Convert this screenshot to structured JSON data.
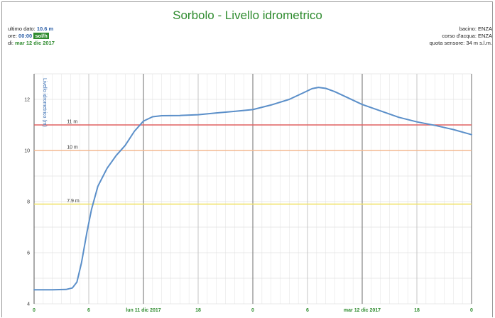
{
  "title": "Sorbolo - Livello idrometrico",
  "info_left": {
    "ultimo_label": "ultimo dato:",
    "ultimo_value": "10.6 m",
    "ore_label": "ore:",
    "ore_value": "00:00",
    "ore_tag": "sol/h",
    "di_label": "di:",
    "di_value": "mar 12 dic 2017"
  },
  "info_right": {
    "bacino": "bacino: ENZA",
    "corso": "corso d'acqua: ENZA",
    "quota": "quota sensore: 34 m s.l.m."
  },
  "colors": {
    "title": "#2e8b2e",
    "series": "#5b8fc9",
    "threshold_red": "#e06060",
    "threshold_orange": "#f3b890",
    "threshold_yellow": "#f0e26a"
  },
  "chart_data": {
    "type": "line",
    "ylabel": "Livello idrometrico (m)",
    "ylim": [
      4,
      13
    ],
    "xlim": [
      0,
      48
    ],
    "y_ticks": [
      "4",
      "6",
      "8",
      "10",
      "12"
    ],
    "x_ticks": [
      {
        "x": 0,
        "label": "0"
      },
      {
        "x": 6,
        "label": "6"
      },
      {
        "x": 12,
        "label": "lun 11 dic 2017"
      },
      {
        "x": 18,
        "label": "18"
      },
      {
        "x": 24,
        "label": "0"
      },
      {
        "x": 30,
        "label": "6"
      },
      {
        "x": 36,
        "label": "mar 12 dic 2017"
      },
      {
        "x": 42,
        "label": "18"
      },
      {
        "x": 48,
        "label": "0"
      }
    ],
    "grid": true,
    "thresholds": [
      {
        "value": 11,
        "label": "11 m",
        "color": "#e06060"
      },
      {
        "value": 10,
        "label": "10 m",
        "color": "#f3b890"
      },
      {
        "value": 7.9,
        "label": "7.9 m",
        "color": "#f0e26a"
      }
    ],
    "series": [
      {
        "values": [
          {
            "x": 0,
            "y": 4.55
          },
          {
            "x": 2,
            "y": 4.55
          },
          {
            "x": 3.5,
            "y": 4.56
          },
          {
            "x": 4.2,
            "y": 4.62
          },
          {
            "x": 4.7,
            "y": 4.85
          },
          {
            "x": 5.2,
            "y": 5.6
          },
          {
            "x": 5.8,
            "y": 6.8
          },
          {
            "x": 6.3,
            "y": 7.7
          },
          {
            "x": 7,
            "y": 8.6
          },
          {
            "x": 8,
            "y": 9.3
          },
          {
            "x": 9,
            "y": 9.8
          },
          {
            "x": 10,
            "y": 10.2
          },
          {
            "x": 11,
            "y": 10.75
          },
          {
            "x": 12,
            "y": 11.15
          },
          {
            "x": 13,
            "y": 11.32
          },
          {
            "x": 14,
            "y": 11.36
          },
          {
            "x": 16,
            "y": 11.37
          },
          {
            "x": 18,
            "y": 11.4
          },
          {
            "x": 20,
            "y": 11.47
          },
          {
            "x": 22,
            "y": 11.53
          },
          {
            "x": 24,
            "y": 11.6
          },
          {
            "x": 26,
            "y": 11.78
          },
          {
            "x": 28,
            "y": 12.0
          },
          {
            "x": 29.5,
            "y": 12.25
          },
          {
            "x": 30.5,
            "y": 12.42
          },
          {
            "x": 31.2,
            "y": 12.47
          },
          {
            "x": 32,
            "y": 12.43
          },
          {
            "x": 33,
            "y": 12.3
          },
          {
            "x": 34.5,
            "y": 12.05
          },
          {
            "x": 36,
            "y": 11.8
          },
          {
            "x": 38,
            "y": 11.55
          },
          {
            "x": 40,
            "y": 11.3
          },
          {
            "x": 42,
            "y": 11.12
          },
          {
            "x": 44,
            "y": 10.98
          },
          {
            "x": 46,
            "y": 10.82
          },
          {
            "x": 48,
            "y": 10.62
          }
        ]
      }
    ]
  }
}
